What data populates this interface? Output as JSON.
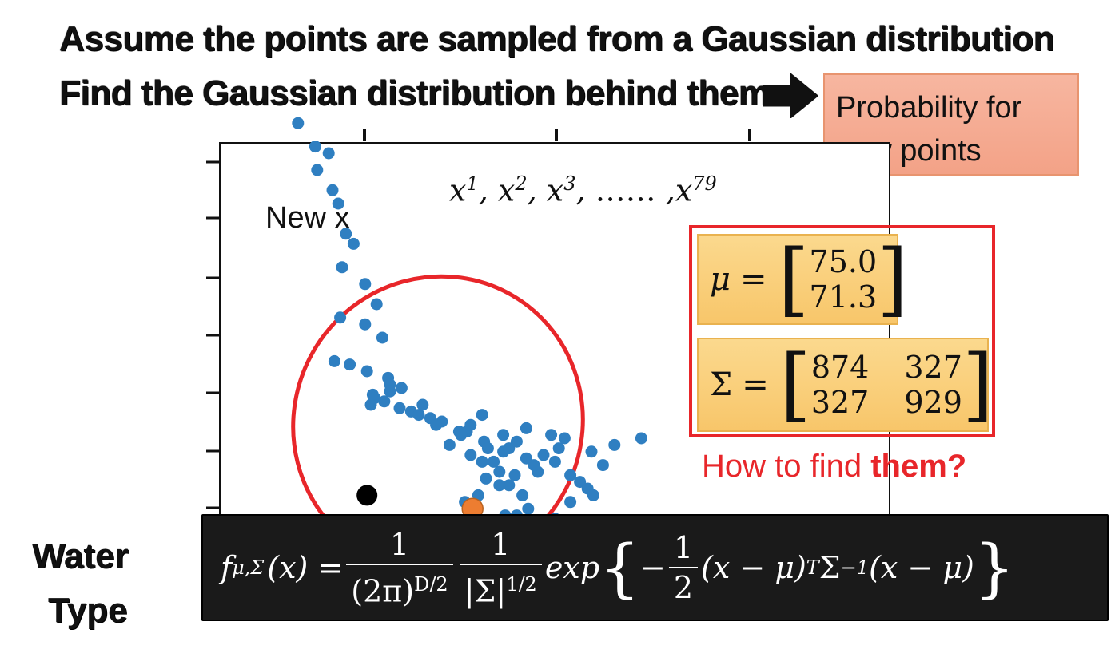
{
  "heading_line1": "Assume the points are sampled from a Gaussian distribution",
  "heading_line2": "Find the Gaussian distribution behind them",
  "probability_box": {
    "line1": "Probability for",
    "line2": "new points"
  },
  "sequence_label": {
    "base": "x",
    "first": "1",
    "second": "2",
    "third": "3",
    "ellipsis": "……",
    "last": "79"
  },
  "new_x_label": "New x",
  "mu": {
    "symbol": "μ",
    "equals": "=",
    "values": [
      "75.0",
      "71.3"
    ]
  },
  "sigma": {
    "symbol": "Σ",
    "equals": "=",
    "values": [
      [
        "874",
        "327"
      ],
      [
        "327",
        "929"
      ]
    ]
  },
  "question": {
    "part1": "How to find ",
    "part2": "them?"
  },
  "formula": {
    "lhs": "f",
    "lhs_sub": "μ,Σ",
    "lhs_arg": "(x) =",
    "frac1_num": "1",
    "frac1_den": "(2π)",
    "frac1_den_sup": "D/2",
    "frac2_num": "1",
    "frac2_den": "|Σ|",
    "frac2_den_sup": "1/2",
    "exp": "exp",
    "brace_open": "{",
    "minus": "−",
    "frac3_num": "1",
    "frac3_den": "2",
    "term1": "(x − μ)",
    "term1_sup": "T",
    "sigma_inv": "Σ",
    "sigma_inv_sup": "−1",
    "term2": "(x − μ)",
    "brace_close": "}"
  },
  "background_labels": {
    "left_line1": "Water",
    "left_line2": "Type"
  },
  "colors": {
    "point": "#2f7fc1",
    "mean_point": "#ed7d31",
    "new_point": "#000000",
    "ellipse": "#e8262a",
    "frame": "#e8262a",
    "prob_box": "#f4a98f",
    "param_box": "#f9cf7c",
    "formula_bg": "#1a1a1a"
  },
  "chart_data": {
    "type": "scatter",
    "series": [
      {
        "values": [
          [
            52,
            89
          ],
          [
            61,
            82
          ],
          [
            68,
            80
          ],
          [
            62,
            75
          ],
          [
            70,
            69
          ],
          [
            73,
            65
          ],
          [
            77,
            56
          ],
          [
            81,
            53
          ],
          [
            75,
            46
          ],
          [
            87,
            41
          ],
          [
            93,
            35
          ],
          [
            74,
            31
          ],
          [
            87,
            29
          ],
          [
            96,
            25
          ],
          [
            71,
            18
          ],
          [
            79,
            17
          ],
          [
            88,
            15
          ],
          [
            99,
            13
          ],
          [
            100,
            11
          ],
          [
            106,
            10
          ],
          [
            100,
            9
          ],
          [
            91,
            8
          ],
          [
            92,
            7
          ],
          [
            97,
            6
          ],
          [
            90,
            5
          ],
          [
            105,
            4
          ],
          [
            111,
            3
          ],
          [
            117,
            5
          ],
          [
            115,
            2
          ],
          [
            121,
            1
          ],
          [
            127,
            0
          ],
          [
            124,
            -1
          ],
          [
            136,
            -3
          ],
          [
            140,
            -3
          ],
          [
            142,
            -1
          ],
          [
            148,
            2
          ],
          [
            131,
            -7
          ],
          [
            137,
            -4
          ],
          [
            149,
            -6
          ],
          [
            151,
            -8
          ],
          [
            142,
            -10
          ],
          [
            148,
            -12
          ],
          [
            154,
            -12
          ],
          [
            157,
            -15
          ],
          [
            150,
            -17
          ],
          [
            162,
            -19
          ],
          [
            165,
            -16
          ],
          [
            177,
            -15
          ],
          [
            175,
            -13
          ],
          [
            171,
            -11
          ],
          [
            159,
            -9
          ],
          [
            162,
            -8
          ],
          [
            166,
            -6
          ],
          [
            159,
            -4
          ],
          [
            171,
            -2
          ],
          [
            184,
            -4
          ],
          [
            188,
            -8
          ],
          [
            180,
            -10
          ],
          [
            191,
            -5
          ],
          [
            186,
            -12
          ],
          [
            194,
            -16
          ],
          [
            199,
            -18
          ],
          [
            203,
            -20
          ],
          [
            206,
            -22
          ],
          [
            194,
            -24
          ],
          [
            172,
            -26
          ],
          [
            166,
            -28
          ],
          [
            160,
            -28
          ],
          [
            186,
            -29
          ],
          [
            193,
            -31
          ],
          [
            199,
            -33
          ],
          [
            157,
            -19
          ],
          [
            146,
            -22
          ],
          [
            139,
            -24
          ],
          [
            169,
            -22
          ],
          [
            205,
            -9
          ],
          [
            211,
            -13
          ],
          [
            217,
            -7
          ],
          [
            231,
            -5
          ]
        ]
      }
    ],
    "mean_point": [
      143,
      -26
    ],
    "new_point": [
      88,
      -22
    ]
  }
}
